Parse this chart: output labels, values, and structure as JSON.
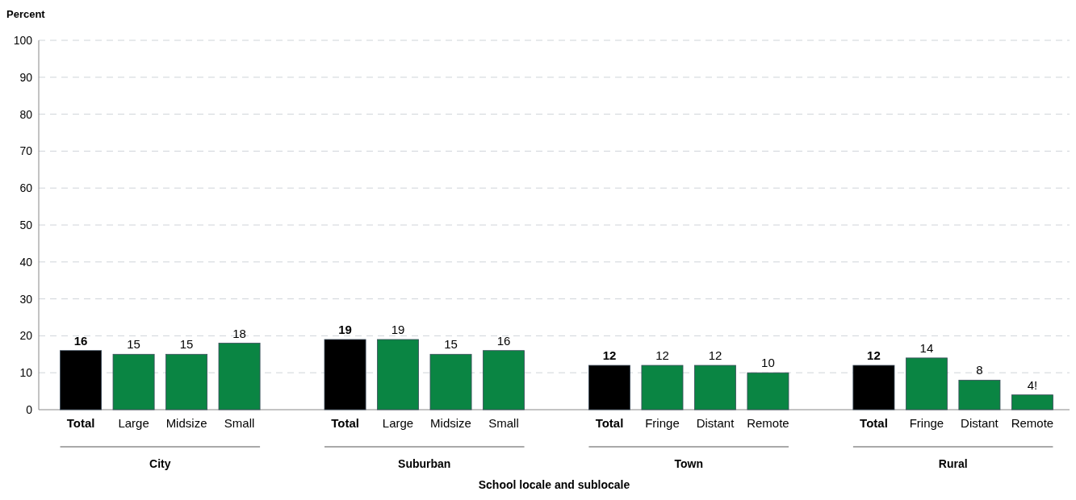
{
  "chart_data": {
    "type": "bar",
    "ylabel": "Percent",
    "xlabel": "School locale and sublocale",
    "categories": [
      "Total",
      "Large",
      "Midsize",
      "Small",
      null,
      "Total",
      "Large",
      "Midsize",
      "Small",
      null,
      "Total",
      "Fringe",
      "Distant",
      "Remote",
      null,
      "Total",
      "Fringe",
      "Distant",
      "Remote"
    ],
    "values": [
      16,
      15,
      15,
      18,
      null,
      19,
      19,
      15,
      16,
      null,
      12,
      12,
      12,
      10,
      null,
      12,
      14,
      8,
      4
    ],
    "value_labels": [
      "16",
      "15",
      "15",
      "18",
      null,
      "19",
      "19",
      "15",
      "16",
      null,
      "12",
      "12",
      "12",
      "10",
      null,
      "12",
      "14",
      "8",
      "4!"
    ],
    "colors": [
      "#000000",
      "#0a8543",
      "#0a8543",
      "#0a8543",
      null,
      "#000000",
      "#0a8543",
      "#0a8543",
      "#0a8543",
      null,
      "#000000",
      "#0a8543",
      "#0a8543",
      "#0a8543",
      null,
      "#000000",
      "#0a8543",
      "#0a8543",
      "#0a8543"
    ],
    "ylim": [
      0,
      100
    ],
    "yticks": [
      0,
      10,
      20,
      30,
      40,
      50,
      60,
      70,
      80,
      90,
      100
    ],
    "grid": "y",
    "annotations": [
      "City",
      "Suburban",
      "Town",
      "Rural"
    ]
  }
}
